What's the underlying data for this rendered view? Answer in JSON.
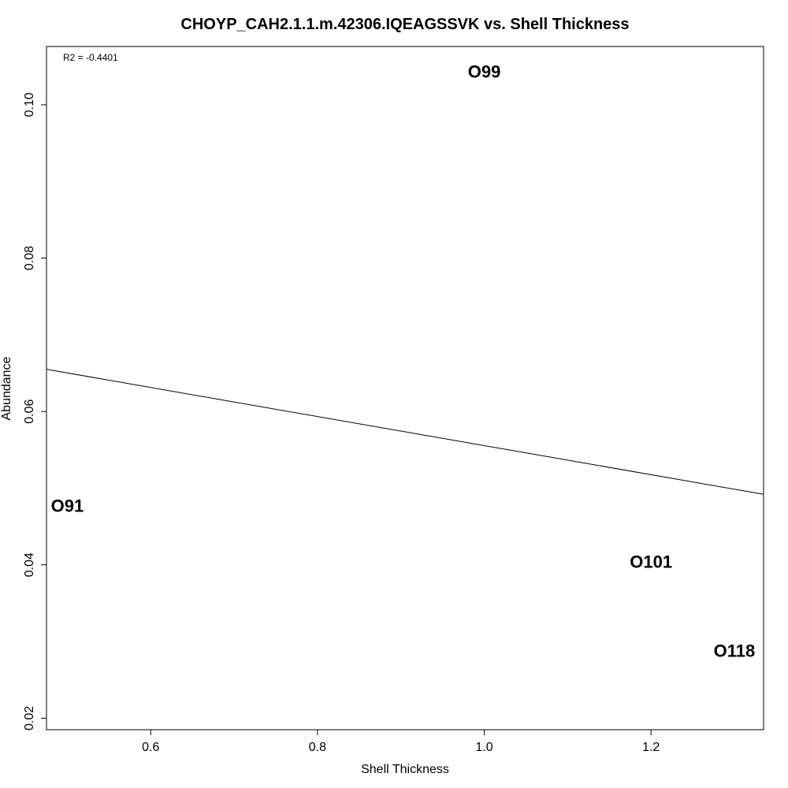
{
  "chart_data": {
    "type": "scatter",
    "title": "CHOYP_CAH2.1.1.m.42306.IQEAGSSVK vs. Shell Thickness",
    "xlabel": "Shell Thickness",
    "ylabel": "Abundance",
    "xlim": [
      0.475,
      1.335
    ],
    "ylim": [
      0.0185,
      0.1076
    ],
    "x_ticks": [
      0.6,
      0.8,
      1.0,
      1.2
    ],
    "x_tick_labels": [
      "0.6",
      "0.8",
      "1.0",
      "1.2"
    ],
    "y_ticks": [
      0.02,
      0.04,
      0.06,
      0.08,
      0.1
    ],
    "y_tick_labels": [
      "0.02",
      "0.04",
      "0.06",
      "0.08",
      "0.10"
    ],
    "points": [
      {
        "label": "O91",
        "x": 0.5,
        "y": 0.0477
      },
      {
        "label": "O99",
        "x": 1.0,
        "y": 0.1043
      },
      {
        "label": "O101",
        "x": 1.2,
        "y": 0.0404
      },
      {
        "label": "O118",
        "x": 1.3,
        "y": 0.0288
      }
    ],
    "regression_line": {
      "x": [
        0.475,
        1.335
      ],
      "y": [
        0.0655,
        0.0492
      ]
    },
    "annotation": "R2 = -0.4401",
    "grid": false,
    "legend": "none"
  }
}
